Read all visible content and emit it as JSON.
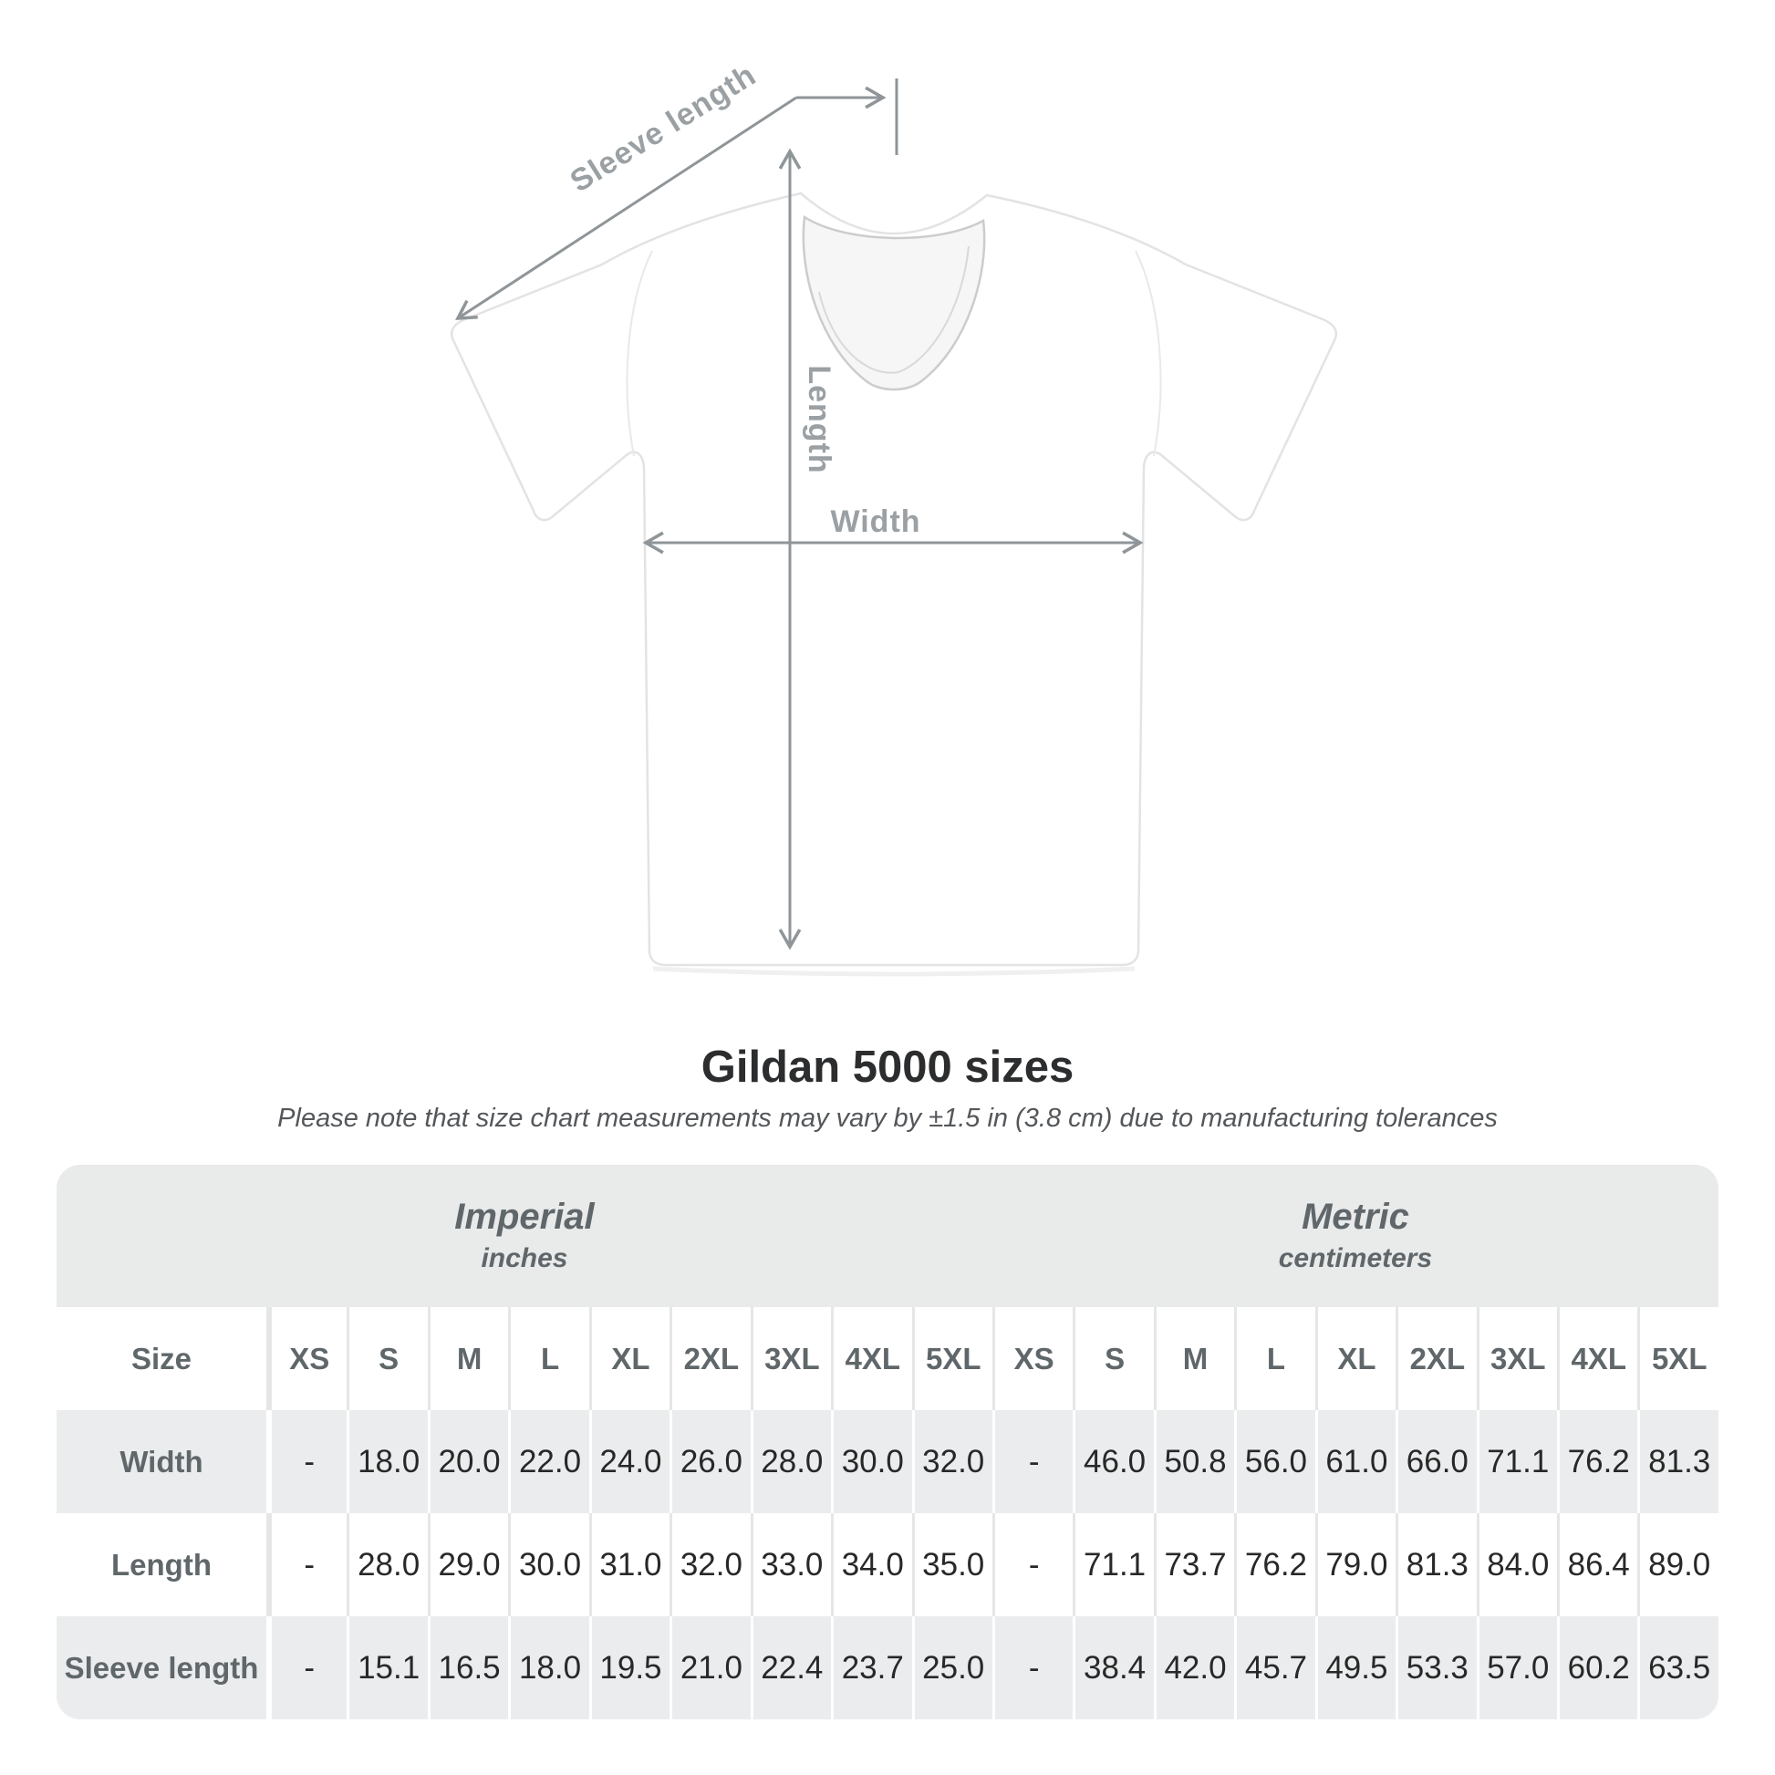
{
  "diagram": {
    "sleeve_length_label": "Sleeve length",
    "length_label": "Length",
    "width_label": "Width"
  },
  "title": "Gildan 5000 sizes",
  "subtitle": "Please note that size chart measurements may vary by ±1.5 in (3.8 cm) due to manufacturing tolerances",
  "size_chart": {
    "sections": [
      {
        "label": "Imperial",
        "unit": "inches"
      },
      {
        "label": "Metric",
        "unit": "centimeters"
      }
    ],
    "size_column_header": "Size",
    "sizes": [
      "XS",
      "S",
      "M",
      "L",
      "XL",
      "2XL",
      "3XL",
      "4XL",
      "5XL"
    ],
    "rows": [
      {
        "label": "Width",
        "imperial": [
          "-",
          "18.0",
          "20.0",
          "22.0",
          "24.0",
          "26.0",
          "28.0",
          "30.0",
          "32.0"
        ],
        "metric": [
          "-",
          "46.0",
          "50.8",
          "56.0",
          "61.0",
          "66.0",
          "71.1",
          "76.2",
          "81.3"
        ]
      },
      {
        "label": "Length",
        "imperial": [
          "-",
          "28.0",
          "29.0",
          "30.0",
          "31.0",
          "32.0",
          "33.0",
          "34.0",
          "35.0"
        ],
        "metric": [
          "-",
          "71.1",
          "73.7",
          "76.2",
          "79.0",
          "81.3",
          "84.0",
          "86.4",
          "89.0"
        ]
      },
      {
        "label": "Sleeve length",
        "imperial": [
          "-",
          "15.1",
          "16.5",
          "18.0",
          "19.5",
          "21.0",
          "22.4",
          "23.7",
          "25.0"
        ],
        "metric": [
          "-",
          "38.4",
          "42.0",
          "45.7",
          "49.5",
          "53.3",
          "57.0",
          "60.2",
          "63.5"
        ]
      }
    ]
  },
  "colors": {
    "band_gray": "#e9eaea",
    "row_gray": "#ebeced",
    "heading_text": "#60676a",
    "value_text": "#282828",
    "annotation": "#8f9598",
    "annotation_label": "#9aa0a3",
    "title_text": "#2b2d2e",
    "subtitle_text": "#54575a"
  }
}
